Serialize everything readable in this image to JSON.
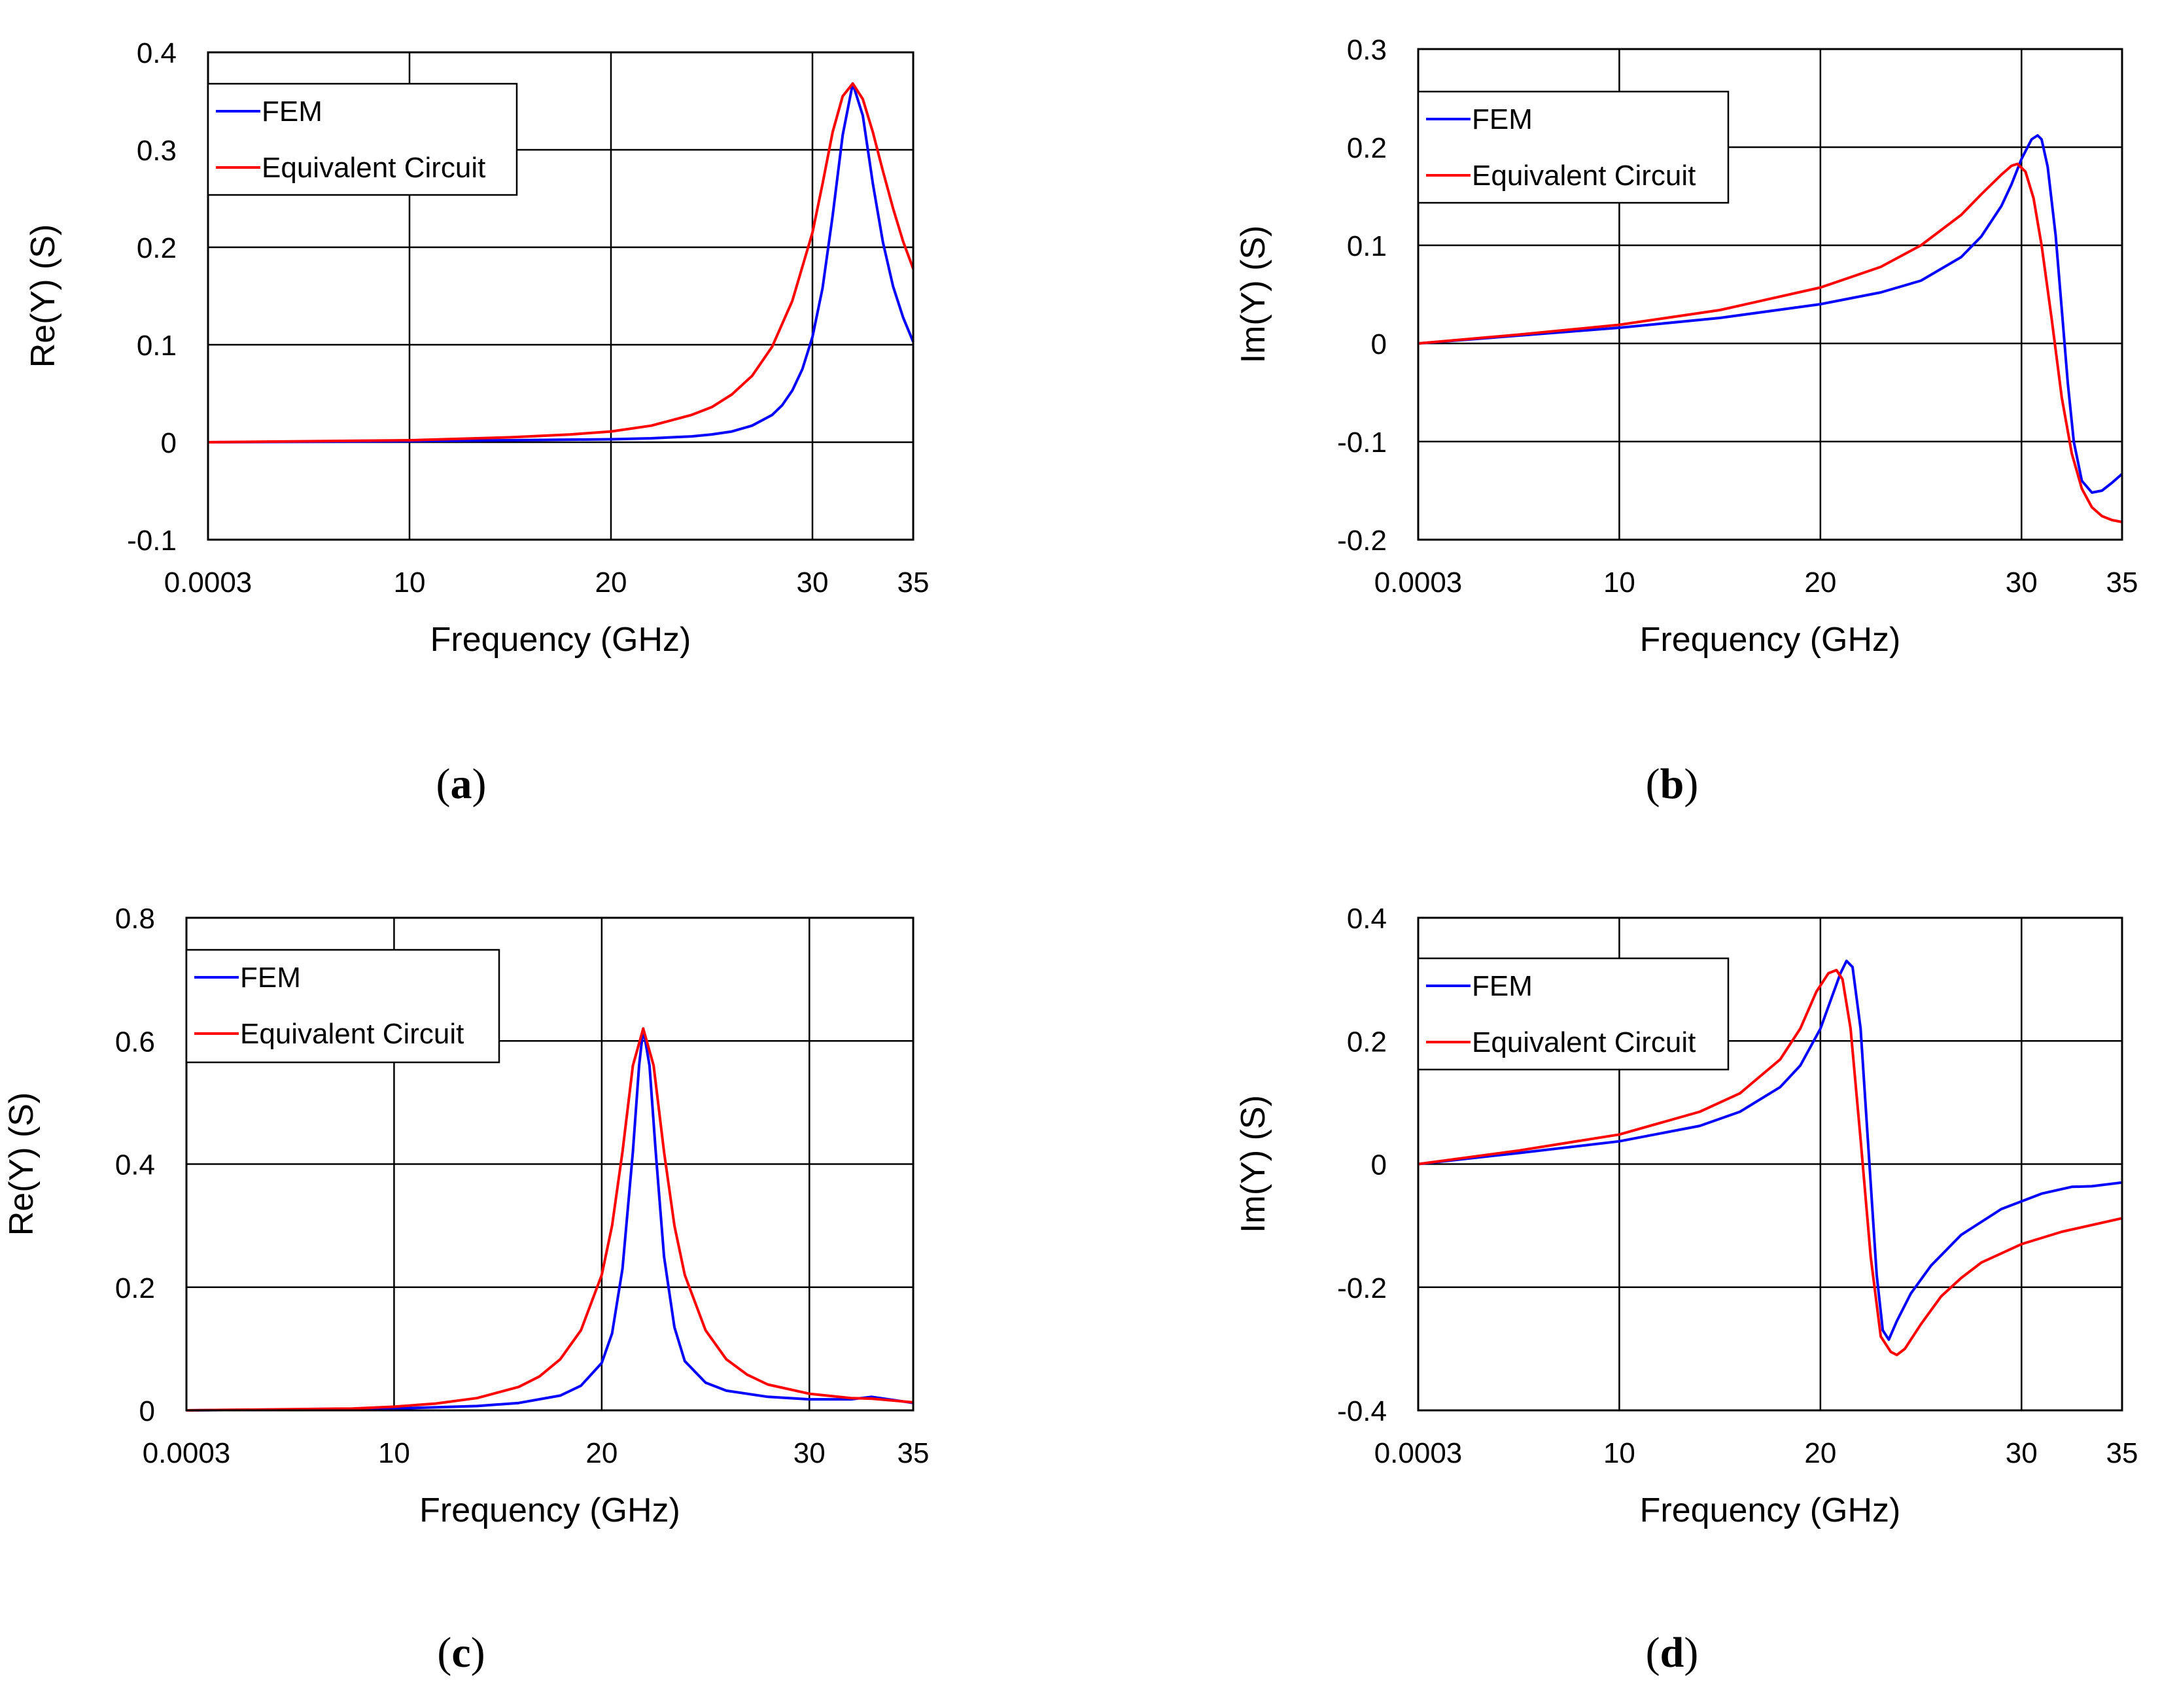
{
  "chart_data": [
    {
      "panel": "a",
      "type": "line",
      "xlabel": "Frequency (GHz)",
      "ylabel": "Re(Y) (S)",
      "xlim": [
        0.0003,
        35
      ],
      "ylim": [
        -0.1,
        0.4
      ],
      "xticks": [
        0.0003,
        10,
        20,
        30,
        35
      ],
      "xtick_labels": [
        "0.0003",
        "10",
        "20",
        "30",
        "35"
      ],
      "yticks": [
        -0.1,
        0,
        0.1,
        0.2,
        0.3,
        0.4
      ],
      "ytick_labels": [
        "-0.1",
        "0",
        "0.1",
        "0.2",
        "0.3",
        "0.4"
      ],
      "grid": true,
      "legend": "top-left",
      "series": [
        {
          "name": "FEM",
          "color": "#0000ff",
          "x": [
            0.0003,
            10,
            15,
            20,
            22,
            24,
            25,
            26,
            27,
            28,
            28.5,
            29,
            29.5,
            30,
            30.5,
            31,
            31.5,
            32,
            32.5,
            33,
            33.5,
            34,
            34.5,
            35
          ],
          "y": [
            0,
            0.001,
            0.002,
            0.003,
            0.004,
            0.006,
            0.008,
            0.011,
            0.017,
            0.028,
            0.038,
            0.053,
            0.075,
            0.108,
            0.158,
            0.232,
            0.315,
            0.368,
            0.335,
            0.265,
            0.205,
            0.16,
            0.128,
            0.103
          ]
        },
        {
          "name": "Equivalent Circuit",
          "color": "#ff0000",
          "x": [
            0.0003,
            10,
            15,
            18,
            20,
            22,
            24,
            25,
            26,
            27,
            28,
            29,
            30,
            30.5,
            31,
            31.5,
            32,
            32.5,
            33,
            33.5,
            34,
            34.5,
            35
          ],
          "y": [
            0,
            0.002,
            0.005,
            0.008,
            0.011,
            0.017,
            0.028,
            0.036,
            0.049,
            0.068,
            0.098,
            0.145,
            0.215,
            0.265,
            0.318,
            0.355,
            0.368,
            0.352,
            0.318,
            0.278,
            0.24,
            0.206,
            0.178
          ]
        }
      ]
    },
    {
      "panel": "b",
      "type": "line",
      "xlabel": "Frequency (GHz)",
      "ylabel": "Im(Y) (S)",
      "xlim": [
        0.0003,
        35
      ],
      "ylim": [
        -0.2,
        0.3
      ],
      "xticks": [
        0.0003,
        10,
        20,
        30,
        35
      ],
      "xtick_labels": [
        "0.0003",
        "10",
        "20",
        "30",
        "35"
      ],
      "yticks": [
        -0.2,
        -0.1,
        0,
        0.1,
        0.2,
        0.3
      ],
      "ytick_labels": [
        "-0.2",
        "-0.1",
        "0",
        "0.1",
        "0.2",
        "0.3"
      ],
      "grid": true,
      "legend": "top-left",
      "series": [
        {
          "name": "FEM",
          "color": "#0000ff",
          "x": [
            0.0003,
            5,
            10,
            15,
            20,
            23,
            25,
            27,
            28,
            29,
            29.5,
            30,
            30.5,
            30.8,
            31,
            31.3,
            31.7,
            32,
            32.3,
            32.6,
            33,
            33.5,
            34,
            34.5,
            35
          ],
          "y": [
            0,
            0.008,
            0.016,
            0.026,
            0.04,
            0.052,
            0.064,
            0.088,
            0.109,
            0.14,
            0.162,
            0.188,
            0.208,
            0.212,
            0.208,
            0.18,
            0.11,
            0.035,
            -0.04,
            -0.1,
            -0.14,
            -0.152,
            -0.15,
            -0.142,
            -0.133
          ]
        },
        {
          "name": "Equivalent Circuit",
          "color": "#ff0000",
          "x": [
            0.0003,
            5,
            10,
            15,
            20,
            23,
            25,
            27,
            28,
            29,
            29.5,
            29.8,
            30.2,
            30.6,
            31,
            31.5,
            32,
            32.5,
            33,
            33.5,
            34,
            34.5,
            35
          ],
          "y": [
            0,
            0.009,
            0.019,
            0.034,
            0.057,
            0.078,
            0.1,
            0.131,
            0.152,
            0.172,
            0.181,
            0.183,
            0.175,
            0.148,
            0.1,
            0.025,
            -0.055,
            -0.112,
            -0.148,
            -0.167,
            -0.176,
            -0.18,
            -0.182
          ]
        }
      ]
    },
    {
      "panel": "c",
      "type": "line",
      "xlabel": "Frequency (GHz)",
      "ylabel": "Re(Y) (S)",
      "xlim": [
        0.0003,
        35
      ],
      "ylim": [
        0,
        0.8
      ],
      "xticks": [
        0.0003,
        10,
        20,
        30,
        35
      ],
      "xtick_labels": [
        "0.0003",
        "10",
        "20",
        "30",
        "35"
      ],
      "yticks": [
        0,
        0.2,
        0.4,
        0.6,
        0.8
      ],
      "ytick_labels": [
        "0",
        "0.2",
        "0.4",
        "0.6",
        "0.8"
      ],
      "grid": true,
      "legend": "top-left",
      "series": [
        {
          "name": "FEM",
          "color": "#0000ff",
          "x": [
            0.0003,
            10,
            14,
            16,
            18,
            19,
            20,
            20.5,
            21,
            21.5,
            21.8,
            22,
            22.3,
            22.6,
            23,
            23.5,
            24,
            25,
            26,
            28,
            30,
            32,
            33,
            34,
            35
          ],
          "y": [
            0,
            0.003,
            0.007,
            0.012,
            0.024,
            0.04,
            0.077,
            0.125,
            0.23,
            0.42,
            0.56,
            0.62,
            0.56,
            0.42,
            0.25,
            0.135,
            0.08,
            0.045,
            0.032,
            0.022,
            0.018,
            0.018,
            0.022,
            0.017,
            0.012
          ]
        },
        {
          "name": "Equivalent Circuit",
          "color": "#ff0000",
          "x": [
            0.0003,
            8,
            10,
            12,
            14,
            16,
            17,
            18,
            19,
            20,
            20.5,
            21,
            21.5,
            22,
            22.5,
            23,
            23.5,
            24,
            25,
            26,
            27,
            28,
            30,
            32,
            33,
            34,
            35
          ],
          "y": [
            0,
            0.003,
            0.006,
            0.011,
            0.02,
            0.038,
            0.055,
            0.083,
            0.13,
            0.22,
            0.3,
            0.42,
            0.56,
            0.62,
            0.56,
            0.42,
            0.3,
            0.22,
            0.13,
            0.083,
            0.058,
            0.042,
            0.027,
            0.02,
            0.019,
            0.016,
            0.013
          ]
        }
      ]
    },
    {
      "panel": "d",
      "type": "line",
      "xlabel": "Frequency (GHz)",
      "ylabel": "Im(Y) (S)",
      "xlim": [
        0.0003,
        35
      ],
      "ylim": [
        -0.4,
        0.4
      ],
      "xticks": [
        0.0003,
        10,
        20,
        30,
        35
      ],
      "xtick_labels": [
        "0.0003",
        "10",
        "20",
        "30",
        "35"
      ],
      "yticks": [
        -0.4,
        -0.2,
        0,
        0.2,
        0.4
      ],
      "ytick_labels": [
        "-0.4",
        "-0.2",
        "0",
        "0.2",
        "0.4"
      ],
      "grid": true,
      "legend": "top-left",
      "series": [
        {
          "name": "FEM",
          "color": "#0000ff",
          "x": [
            0.0003,
            5,
            10,
            14,
            16,
            18,
            19,
            20,
            20.5,
            21,
            21.3,
            21.6,
            22,
            22.4,
            22.8,
            23.1,
            23.4,
            23.8,
            24.5,
            25.5,
            27,
            29,
            31,
            32.5,
            33.5,
            35
          ],
          "y": [
            0,
            0.018,
            0.037,
            0.062,
            0.085,
            0.125,
            0.16,
            0.22,
            0.265,
            0.31,
            0.33,
            0.32,
            0.22,
            0.02,
            -0.18,
            -0.27,
            -0.285,
            -0.255,
            -0.21,
            -0.165,
            -0.115,
            -0.073,
            -0.048,
            -0.037,
            -0.036,
            -0.03
          ]
        },
        {
          "name": "Equivalent Circuit",
          "color": "#ff0000",
          "x": [
            0.0003,
            5,
            10,
            14,
            16,
            18,
            19,
            19.8,
            20.4,
            20.8,
            21.1,
            21.5,
            22,
            22.5,
            23,
            23.5,
            23.8,
            24.2,
            25,
            26,
            27,
            28,
            30,
            32,
            35
          ],
          "y": [
            0,
            0.022,
            0.048,
            0.085,
            0.115,
            0.17,
            0.22,
            0.28,
            0.31,
            0.315,
            0.3,
            0.22,
            0.04,
            -0.15,
            -0.28,
            -0.305,
            -0.31,
            -0.3,
            -0.26,
            -0.215,
            -0.185,
            -0.16,
            -0.13,
            -0.11,
            -0.088
          ]
        }
      ]
    }
  ]
}
